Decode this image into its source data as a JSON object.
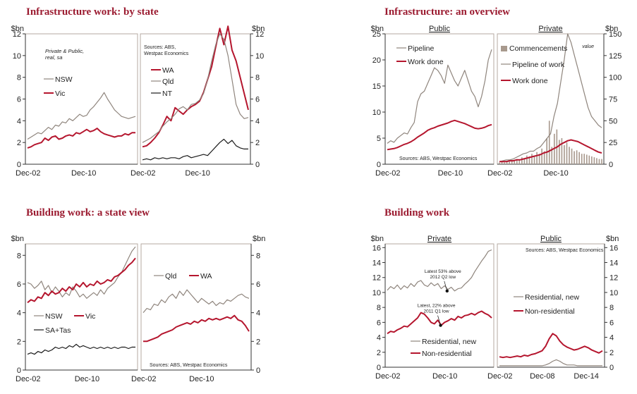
{
  "titles": {
    "tl": "Infrastructure work: by state",
    "tr": "Infrastructure: an overview",
    "bl": "Building work: a state view",
    "br": "Building work"
  },
  "colors": {
    "red": "#b5162e",
    "grey": "#8f857d",
    "dark": "#1a1a1a",
    "bar": "#a8998d",
    "title": "#9b1b30"
  },
  "chart_data": [
    {
      "id": "infra_state_left",
      "type": "line",
      "ylabel": "$bn",
      "ylim": [
        0,
        12
      ],
      "yticks": [
        0,
        2,
        4,
        6,
        8,
        10,
        12
      ],
      "xticks": [
        "Dec-02",
        "Dec-10"
      ],
      "x_range": [
        "Dec-02",
        "Sep-17"
      ],
      "note": [
        "Private & Public,",
        "real, sa"
      ],
      "series": [
        {
          "name": "NSW",
          "color": "grey",
          "values": [
            2.3,
            2.5,
            2.7,
            2.9,
            2.8,
            3.1,
            3.4,
            3.2,
            3.6,
            3.5,
            3.9,
            3.8,
            4.2,
            4.0,
            4.3,
            4.6,
            4.4,
            4.5,
            5.0,
            5.3,
            5.7,
            6.1,
            6.6,
            6.0,
            5.5,
            5.0,
            4.7,
            4.4,
            4.3,
            4.2,
            4.3,
            4.4
          ]
        },
        {
          "name": "Vic",
          "color": "red",
          "values": [
            1.5,
            1.6,
            1.8,
            1.9,
            2.0,
            2.4,
            2.2,
            2.5,
            2.6,
            2.3,
            2.4,
            2.6,
            2.7,
            2.6,
            2.9,
            2.8,
            3.0,
            3.2,
            3.0,
            3.1,
            3.3,
            3.0,
            2.8,
            2.7,
            2.6,
            2.5,
            2.6,
            2.6,
            2.8,
            2.7,
            2.9,
            2.9
          ]
        }
      ]
    },
    {
      "id": "infra_state_right",
      "type": "line",
      "ylabel": "$bn",
      "ylim": [
        0,
        12
      ],
      "yticks": [
        0,
        2,
        4,
        6,
        8,
        10,
        12
      ],
      "xticks": [
        "Dec-02",
        "Dec-10"
      ],
      "x_range": [
        "Dec-02",
        "Sep-17"
      ],
      "note": [
        "Sources: ABS,",
        "Westpac Economics"
      ],
      "series": [
        {
          "name": "WA",
          "color": "red",
          "values": [
            1.6,
            1.7,
            2.0,
            2.4,
            2.9,
            3.6,
            4.4,
            4.0,
            5.2,
            4.9,
            4.6,
            5.0,
            5.3,
            5.5,
            5.8,
            6.6,
            7.8,
            9.0,
            10.8,
            12.5,
            11.0,
            12.7,
            10.5,
            9.5,
            8.0,
            6.5,
            5.0
          ]
        },
        {
          "name": "Qld",
          "color": "grey",
          "values": [
            2.0,
            2.2,
            2.4,
            2.7,
            3.0,
            3.5,
            3.9,
            4.2,
            4.6,
            5.1,
            5.3,
            5.0,
            5.5,
            5.6,
            5.9,
            6.5,
            7.8,
            9.5,
            11.0,
            12.0,
            11.5,
            10.0,
            7.8,
            5.5,
            4.6,
            4.2,
            4.3
          ]
        },
        {
          "name": "NT",
          "color": "dark",
          "values": [
            0.4,
            0.5,
            0.4,
            0.6,
            0.5,
            0.6,
            0.5,
            0.6,
            0.6,
            0.5,
            0.7,
            0.8,
            0.6,
            0.7,
            0.8,
            0.9,
            0.8,
            1.2,
            1.6,
            2.0,
            2.3,
            1.9,
            2.2,
            1.7,
            1.5,
            1.4,
            1.4
          ]
        }
      ]
    },
    {
      "id": "infra_overview_public",
      "type": "line",
      "panel_title": "Public",
      "ylabel": "$bn",
      "ylim": [
        0,
        25
      ],
      "yticks": [
        0,
        5,
        10,
        15,
        20,
        25
      ],
      "xticks": [
        "Dec-02",
        "Dec-10"
      ],
      "x_range": [
        "Dec-02",
        "Sep-17"
      ],
      "note": [
        "Sources: ABS, Westpac Economics"
      ],
      "series": [
        {
          "name": "Pipeline",
          "color": "grey",
          "values": [
            4.0,
            4.5,
            4.2,
            5.0,
            5.5,
            6.0,
            5.8,
            7.0,
            8.0,
            12.0,
            13.5,
            14.0,
            15.5,
            17.0,
            18.5,
            18.0,
            17.0,
            15.5,
            19.0,
            17.5,
            16.0,
            15.0,
            16.5,
            18.0,
            16.0,
            14.0,
            13.0,
            11.0,
            13.0,
            16.0,
            20.0,
            22.0
          ]
        },
        {
          "name": "Work done",
          "color": "red",
          "values": [
            2.8,
            2.9,
            3.0,
            3.2,
            3.5,
            3.8,
            4.0,
            4.3,
            4.7,
            5.2,
            5.6,
            6.0,
            6.5,
            6.8,
            7.0,
            7.3,
            7.5,
            7.7,
            7.9,
            8.2,
            8.4,
            8.2,
            8.0,
            7.8,
            7.5,
            7.2,
            6.9,
            6.8,
            6.9,
            7.1,
            7.4,
            7.6
          ]
        }
      ]
    },
    {
      "id": "infra_overview_private",
      "type": "line",
      "panel_title": "Private",
      "ylabel": "$bn",
      "ylim": [
        0,
        150
      ],
      "yticks": [
        0,
        25,
        50,
        75,
        100,
        125,
        150
      ],
      "xticks": [
        "Dec-02",
        "Dec-10"
      ],
      "x_range": [
        "Dec-02",
        "Sep-17"
      ],
      "note": [
        "value"
      ],
      "series": [
        {
          "name": "Commencements",
          "color": "bar",
          "kind": "bar",
          "values": [
            2,
            3,
            2,
            4,
            3,
            5,
            4,
            6,
            5,
            8,
            7,
            10,
            9,
            12,
            10,
            14,
            12,
            18,
            15,
            30,
            50,
            20,
            35,
            40,
            28,
            30,
            22,
            25,
            20,
            18,
            15,
            16,
            14,
            12,
            12,
            11,
            10,
            9,
            8,
            7,
            6,
            6
          ]
        },
        {
          "name": "Pipeline of work",
          "color": "grey",
          "values": [
            3,
            4,
            5,
            5,
            6,
            8,
            10,
            12,
            13,
            15,
            15,
            18,
            20,
            25,
            30,
            35,
            55,
            70,
            95,
            120,
            150,
            140,
            125,
            110,
            95,
            80,
            65,
            55,
            50,
            45,
            42
          ]
        },
        {
          "name": "Work done",
          "color": "red",
          "values": [
            3,
            3,
            3,
            4,
            4,
            5,
            5,
            6,
            7,
            8,
            9,
            10,
            11,
            13,
            14,
            16,
            18,
            20,
            23,
            25,
            27,
            28,
            27,
            26,
            24,
            22,
            20,
            18,
            16,
            14,
            13
          ]
        }
      ]
    },
    {
      "id": "building_state_left",
      "type": "line",
      "ylabel": "$bn",
      "ylim": [
        0,
        8.8
      ],
      "yticks": [
        0,
        2,
        4,
        6,
        8
      ],
      "xticks": [
        "Dec-02",
        "Dec-10"
      ],
      "x_range": [
        "Dec-02",
        "Sep-17"
      ],
      "series": [
        {
          "name": "NSW",
          "color": "grey",
          "values": [
            6.1,
            6.0,
            5.7,
            5.9,
            6.2,
            5.6,
            5.9,
            5.4,
            5.8,
            5.5,
            5.1,
            5.4,
            5.2,
            5.8,
            5.5,
            5.1,
            5.3,
            5.0,
            5.2,
            5.4,
            5.2,
            5.6,
            5.3,
            5.7,
            5.9,
            6.1,
            6.5,
            6.8,
            7.3,
            7.8,
            8.3,
            8.6
          ]
        },
        {
          "name": "Vic",
          "color": "red",
          "values": [
            4.7,
            4.9,
            4.8,
            5.1,
            5.0,
            5.4,
            5.2,
            5.5,
            5.3,
            5.4,
            5.7,
            5.5,
            5.8,
            5.6,
            6.0,
            5.8,
            6.1,
            5.8,
            6.0,
            5.9,
            6.2,
            6.0,
            6.1,
            6.3,
            6.2,
            6.5,
            6.6,
            6.8,
            7.0,
            7.3,
            7.5,
            7.8
          ]
        },
        {
          "name": "SA+Tas",
          "color": "dark",
          "values": [
            1.1,
            1.2,
            1.1,
            1.3,
            1.2,
            1.4,
            1.3,
            1.4,
            1.6,
            1.5,
            1.6,
            1.5,
            1.7,
            1.6,
            1.8,
            1.6,
            1.7,
            1.6,
            1.5,
            1.6,
            1.5,
            1.6,
            1.5,
            1.6,
            1.5,
            1.6,
            1.5,
            1.6,
            1.6,
            1.5,
            1.6,
            1.6
          ]
        }
      ]
    },
    {
      "id": "building_state_right",
      "type": "line",
      "ylabel": "$bn",
      "ylim": [
        0,
        8.8
      ],
      "yticks": [
        0,
        2,
        4,
        6,
        8
      ],
      "xticks": [
        "Dec-02",
        "Dec-10"
      ],
      "x_range": [
        "Dec-02",
        "Sep-17"
      ],
      "note": [
        "Sources: ABS, Westpac Economics"
      ],
      "series": [
        {
          "name": "Qld",
          "color": "grey",
          "values": [
            4.0,
            4.3,
            4.2,
            4.6,
            4.5,
            4.9,
            4.7,
            5.1,
            5.3,
            5.0,
            5.5,
            5.2,
            5.6,
            5.3,
            5.0,
            4.7,
            5.0,
            4.8,
            4.6,
            4.8,
            4.5,
            4.7,
            4.6,
            4.9,
            4.8,
            5.0,
            5.2,
            5.3,
            5.1,
            5.0
          ]
        },
        {
          "name": "WA",
          "color": "red",
          "values": [
            2.0,
            2.0,
            2.1,
            2.2,
            2.3,
            2.5,
            2.6,
            2.7,
            2.8,
            3.0,
            3.1,
            3.2,
            3.3,
            3.2,
            3.4,
            3.3,
            3.5,
            3.4,
            3.6,
            3.5,
            3.6,
            3.5,
            3.6,
            3.7,
            3.6,
            3.8,
            3.5,
            3.4,
            3.1,
            2.7
          ]
        }
      ]
    },
    {
      "id": "building_private",
      "type": "line",
      "panel_title": "Private",
      "ylabel": "$bn",
      "ylim": [
        0,
        16.5
      ],
      "yticks": [
        0,
        2,
        4,
        6,
        8,
        10,
        12,
        14,
        16
      ],
      "xticks": [
        "Dec-02",
        "Dec-10"
      ],
      "x_range": [
        "Dec-02",
        "Sep-17"
      ],
      "annotations": [
        {
          "text": [
            "Latest 53% above",
            "2012 Q2 low"
          ],
          "x": 0.57,
          "y": 10.2
        },
        {
          "text": [
            "Latest, 22% above",
            "2011 Q1 low"
          ],
          "x": 0.51,
          "y": 5.6
        }
      ],
      "series": [
        {
          "name": "Residential, new",
          "color": "grey",
          "values": [
            10.3,
            10.8,
            10.5,
            11.0,
            10.4,
            10.9,
            10.6,
            11.2,
            10.8,
            11.4,
            11.6,
            11.0,
            10.8,
            11.3,
            10.9,
            11.2,
            10.5,
            10.9,
            10.4,
            10.7,
            10.2,
            10.5,
            10.6,
            11.1,
            11.5,
            12.0,
            12.8,
            13.5,
            14.2,
            14.8,
            15.5,
            15.7
          ]
        },
        {
          "name": "Non-residential",
          "color": "red",
          "values": [
            4.5,
            4.8,
            4.7,
            5.0,
            5.2,
            5.5,
            5.4,
            5.8,
            6.2,
            6.6,
            7.3,
            7.1,
            6.6,
            6.0,
            5.8,
            6.3,
            5.6,
            6.0,
            6.2,
            6.5,
            6.3,
            6.8,
            6.6,
            6.9,
            7.0,
            7.2,
            7.0,
            7.3,
            7.5,
            7.2,
            7.0,
            6.6
          ]
        }
      ]
    },
    {
      "id": "building_public",
      "type": "line",
      "panel_title": "Public",
      "ylabel": "$bn",
      "ylim": [
        0,
        16.5
      ],
      "yticks": [
        0,
        2,
        4,
        6,
        8,
        10,
        12,
        14,
        16
      ],
      "xticks": [
        "Dec-02",
        "Dec-08",
        "Dec-14"
      ],
      "x_range": [
        "Dec-02",
        "Sep-17"
      ],
      "note": [
        "Sources: ABS, Westpac Economics"
      ],
      "series": [
        {
          "name": "Residential, new",
          "color": "grey",
          "values": [
            0.2,
            0.2,
            0.2,
            0.2,
            0.2,
            0.2,
            0.2,
            0.2,
            0.2,
            0.2,
            0.2,
            0.2,
            0.2,
            0.3,
            0.5,
            0.8,
            1.0,
            0.8,
            0.5,
            0.3,
            0.3,
            0.3,
            0.2,
            0.2,
            0.2,
            0.2,
            0.2,
            0.2,
            0.2,
            0.2
          ]
        },
        {
          "name": "Non-residential",
          "color": "red",
          "values": [
            1.4,
            1.3,
            1.4,
            1.3,
            1.4,
            1.5,
            1.4,
            1.6,
            1.5,
            1.7,
            1.8,
            2.0,
            2.2,
            2.8,
            3.8,
            4.5,
            4.2,
            3.5,
            3.0,
            2.7,
            2.5,
            2.3,
            2.4,
            2.6,
            2.8,
            2.6,
            2.3,
            2.1,
            1.9,
            2.2
          ]
        }
      ]
    }
  ]
}
